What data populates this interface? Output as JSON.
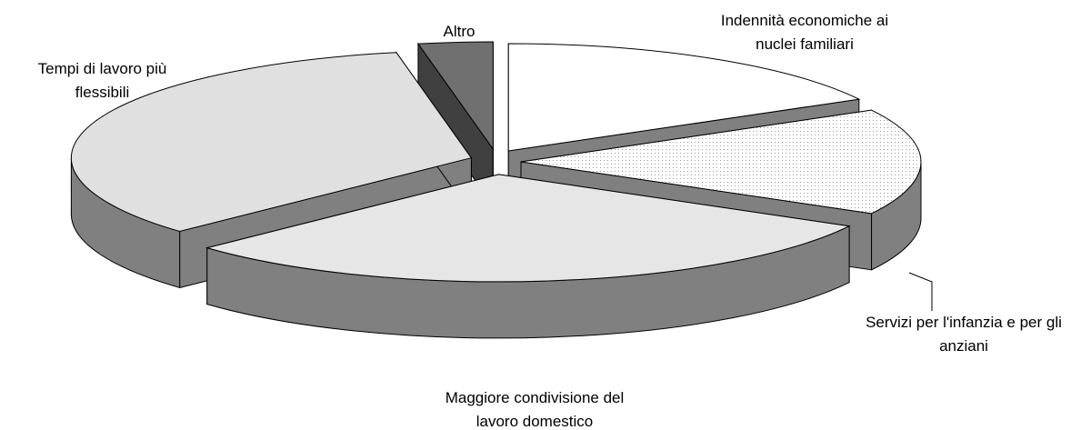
{
  "chart_data": {
    "type": "pie3d",
    "categories": [
      "Indennità economiche ai nuclei familiari",
      "Servizi per l'infanzia e per gli anziani",
      "Maggiore condivisione del lavoro domestico",
      "Tempi di lavoro più flessibili",
      "Altro"
    ],
    "values": [
      17,
      16,
      30,
      34,
      3
    ],
    "colors": [
      "#ffffff",
      "#f2f2f2",
      "#e6e6e6",
      "#e0e0e0",
      "#707070"
    ],
    "side_colors": [
      "#808080",
      "#808080",
      "#808080",
      "#808080",
      "#404040"
    ]
  }
}
